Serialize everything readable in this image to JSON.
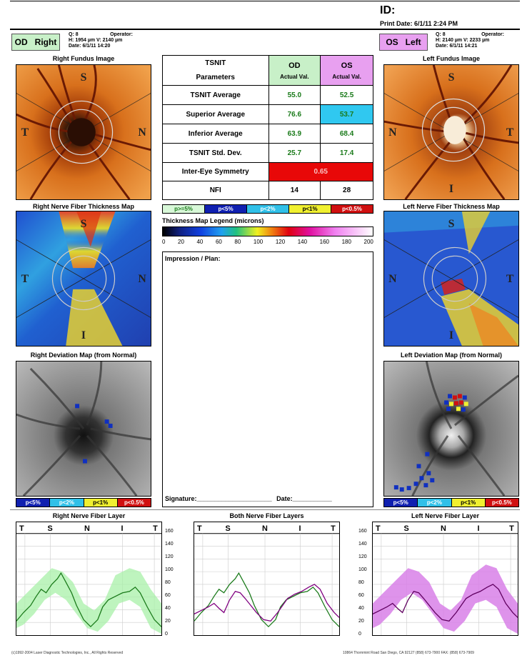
{
  "header": {
    "id_label": "ID:",
    "print_date": "Print Date: 6/1/11 2:24 PM"
  },
  "right_eye": {
    "tag_code": "OD",
    "tag_label": "Right",
    "quality": "Q: 8",
    "operator": "Operator:",
    "dims": "H: 1954 µm V: 2140 µm",
    "date": "Date: 6/1/11 14:20",
    "fundus_title": "Right Fundus Image",
    "thickness_title": "Right Nerve Fiber Thickness Map",
    "deviation_title": "Right Deviation Map (from Normal)",
    "layer_title": "Right Nerve Fiber Layer",
    "color": "#c8f0c8"
  },
  "left_eye": {
    "tag_code": "OS",
    "tag_label": "Left",
    "quality": "Q: 8",
    "operator": "Operator:",
    "dims": "H: 2140 µm V: 2233 µm",
    "date": "Date: 6/1/11 14:21",
    "fundus_title": "Left Fundus Image",
    "thickness_title": "Left Nerve Fiber Thickness Map",
    "deviation_title": "Left Deviation Map (from Normal)",
    "layer_title": "Left Nerve Fiber Layer",
    "color": "#e8a0f0"
  },
  "quadrant_letters": {
    "s": "S",
    "t": "T",
    "n": "N",
    "i": "I"
  },
  "params": {
    "head_l1": "TSNIT",
    "head_l2": "Parameters",
    "od_head": "OD",
    "os_head": "OS",
    "actual": "Actual Val.",
    "rows": [
      {
        "label": "TSNIT Average",
        "od": "55.0",
        "os": "52.5"
      },
      {
        "label": "Superior Average",
        "od": "76.6",
        "os": "53.7"
      },
      {
        "label": "Inferior Average",
        "od": "63.9",
        "os": "68.4"
      },
      {
        "label": "TSNIT Std. Dev.",
        "od": "25.7",
        "os": "17.4"
      }
    ],
    "symmetry_label": "Inter-Eye Symmetry",
    "symmetry_value": "0.65",
    "nfi_label": "NFI",
    "nfi_od": "14",
    "nfi_os": "28"
  },
  "significance_legend": [
    "p>=5%",
    "p<5%",
    "p<2%",
    "p<1%",
    "p<0.5%"
  ],
  "deviation_legend": [
    "p<5%",
    "p<2%",
    "p<1%",
    "p<0.5%"
  ],
  "thickness_legend": {
    "title": "Thickness Map Legend (microns)",
    "ticks": [
      "0",
      "20",
      "40",
      "60",
      "80",
      "100",
      "120",
      "140",
      "160",
      "180",
      "200"
    ]
  },
  "impression": {
    "label": "Impression / Plan:",
    "signature": "Signature:_____________________",
    "date": "Date:___________"
  },
  "both_layer_title": "Both Nerve Fiber Layers",
  "tsnit_labels": [
    "T",
    "S",
    "N",
    "I",
    "T"
  ],
  "graph_yticks": [
    "160",
    "140",
    "120",
    "100",
    "80",
    "60",
    "40",
    "20",
    "0"
  ],
  "footer": {
    "left": "(c)1992-2004 Laser Diagnostic Technologies, Inc., All Rights Reserved",
    "right": "10864 Thornmint Road San Diego, CA 92127 (858) 673-7900 FAX: (858) 673-7909"
  }
}
